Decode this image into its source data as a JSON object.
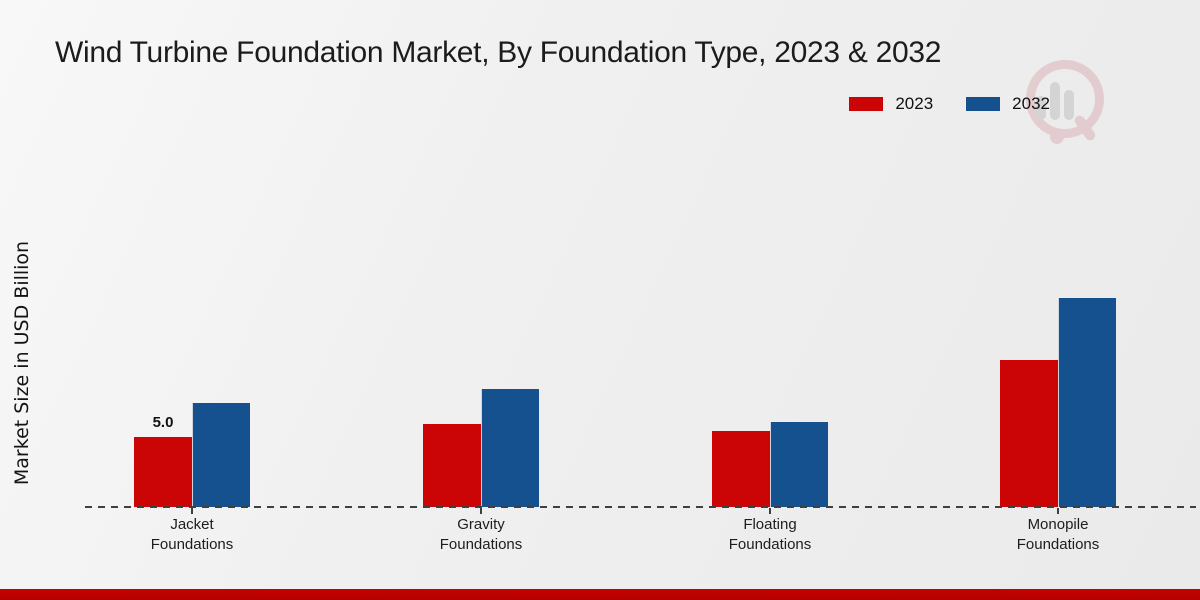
{
  "chart_data": {
    "type": "bar",
    "title": "Wind Turbine Foundation Market, By Foundation Type, 2023 & 2032",
    "xlabel": "",
    "ylabel": "Market Size in USD Billion",
    "categories": [
      "Jacket Foundations",
      "Gravity Foundations",
      "Floating Foundations",
      "Monopile Foundations"
    ],
    "series": [
      {
        "name": "2023",
        "color": "#cb0406",
        "values": [
          5.0,
          5.9,
          5.4,
          10.5
        ],
        "labels": [
          "5.0",
          "",
          "",
          ""
        ]
      },
      {
        "name": "2032",
        "color": "#15518f",
        "values": [
          7.4,
          8.4,
          6.1,
          14.9
        ],
        "labels": [
          "",
          "",
          "",
          ""
        ]
      }
    ],
    "ylim": [
      0,
      16
    ],
    "grid": false,
    "y_axis_tick_labels_visible": false,
    "baseline_style": "dashed",
    "legend_position": "top-right"
  },
  "watermark": {
    "description": "faded magnifying-glass logo with bar-chart inside",
    "ring_color": "#d9aeb3",
    "bars_color": "#bdbdbd"
  },
  "footer": {
    "stripe_color": "#c50202"
  }
}
